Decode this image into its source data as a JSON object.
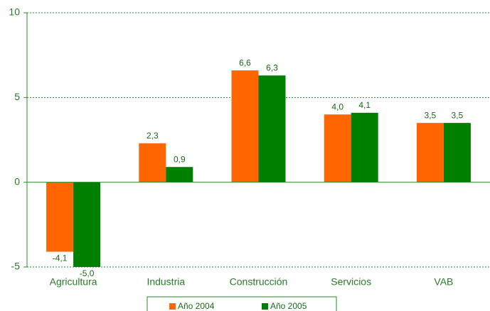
{
  "chart_data": {
    "type": "bar",
    "categories": [
      "Agricultura",
      "Industria",
      "Construcción",
      "Servicios",
      "VAB"
    ],
    "series": [
      {
        "name": "Año 2004",
        "color": "#ff6600",
        "values": [
          -4.1,
          2.3,
          6.6,
          4.0,
          3.5
        ],
        "value_labels": [
          "-4,1",
          "2,3",
          "6,6",
          "4,0",
          "3,5"
        ]
      },
      {
        "name": "Año 2005",
        "color": "#008000",
        "values": [
          -5.0,
          0.9,
          6.3,
          4.1,
          3.5
        ],
        "value_labels": [
          "-5,0",
          "0,9",
          "6,3",
          "4,1",
          "3,5"
        ]
      }
    ],
    "ylim": [
      -5,
      10
    ],
    "yticks": [
      -5,
      0,
      5,
      10
    ],
    "grid": true,
    "legend": "bottom"
  }
}
